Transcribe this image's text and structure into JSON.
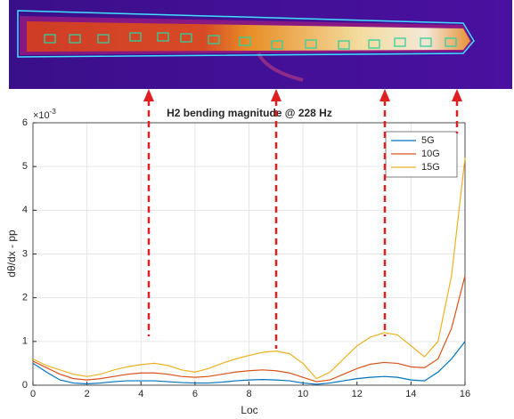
{
  "chart_data": {
    "type": "line",
    "title": "H2 bending magnitude @ 228 Hz",
    "x_label": "Loc",
    "y_label": "dθ/dx - pp",
    "y_multiplier": {
      "base": "×10",
      "exponent": "-3"
    },
    "x": [
      0,
      0.5,
      1,
      1.5,
      2,
      2.5,
      3,
      3.5,
      4,
      4.5,
      5,
      5.5,
      6,
      6.5,
      7,
      7.5,
      8,
      8.5,
      9,
      9.5,
      10,
      10.5,
      11,
      11.5,
      12,
      12.5,
      13,
      13.5,
      14,
      14.5,
      15,
      15.5,
      16
    ],
    "series": [
      {
        "name": "5G",
        "color": "#0072bd",
        "values": [
          0.5,
          0.3,
          0.12,
          0.05,
          0.03,
          0.05,
          0.08,
          0.1,
          0.1,
          0.1,
          0.08,
          0.06,
          0.05,
          0.05,
          0.07,
          0.1,
          0.12,
          0.13,
          0.12,
          0.1,
          0.05,
          0.02,
          0.05,
          0.1,
          0.15,
          0.18,
          0.2,
          0.18,
          0.12,
          0.1,
          0.3,
          0.6,
          1.0
        ]
      },
      {
        "name": "10G",
        "color": "#d95319",
        "values": [
          0.55,
          0.4,
          0.25,
          0.15,
          0.12,
          0.15,
          0.2,
          0.25,
          0.28,
          0.28,
          0.25,
          0.2,
          0.18,
          0.2,
          0.25,
          0.3,
          0.33,
          0.35,
          0.33,
          0.28,
          0.18,
          0.08,
          0.12,
          0.25,
          0.38,
          0.48,
          0.52,
          0.5,
          0.42,
          0.4,
          0.6,
          1.3,
          2.5
        ]
      },
      {
        "name": "15G",
        "color": "#edb120",
        "values": [
          0.6,
          0.45,
          0.35,
          0.25,
          0.2,
          0.25,
          0.35,
          0.42,
          0.47,
          0.5,
          0.45,
          0.35,
          0.3,
          0.38,
          0.5,
          0.6,
          0.68,
          0.75,
          0.78,
          0.72,
          0.5,
          0.15,
          0.3,
          0.6,
          0.9,
          1.1,
          1.2,
          1.15,
          0.9,
          0.65,
          1.0,
          2.5,
          5.2
        ]
      }
    ],
    "xlim": [
      0,
      16
    ],
    "xticks": [
      0,
      2,
      4,
      6,
      8,
      10,
      12,
      14,
      16
    ],
    "ylim": [
      0,
      6
    ],
    "yticks": [
      0,
      1,
      2,
      3,
      4,
      5,
      6
    ],
    "grid": true,
    "legend_position": "top-right"
  }
}
